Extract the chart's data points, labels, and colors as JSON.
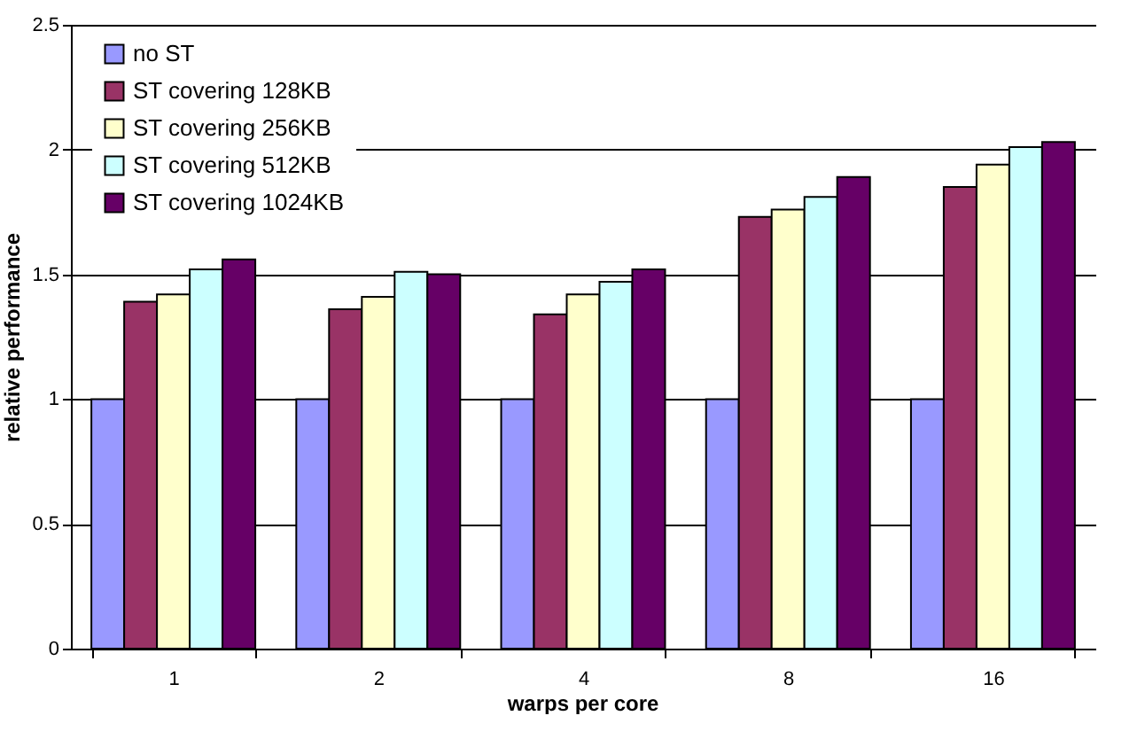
{
  "chart_data": {
    "type": "bar",
    "xlabel": "warps per core",
    "ylabel": "relative performance",
    "categories": [
      "1",
      "2",
      "4",
      "8",
      "16"
    ],
    "series": [
      {
        "name": "no ST",
        "color": "#9999ff",
        "values": [
          1,
          1,
          1,
          1,
          1
        ]
      },
      {
        "name": "ST covering 128KB",
        "color": "#993366",
        "values": [
          1.39,
          1.36,
          1.34,
          1.73,
          1.85
        ]
      },
      {
        "name": "ST covering 256KB",
        "color": "#ffffcc",
        "values": [
          1.42,
          1.41,
          1.42,
          1.76,
          1.94
        ]
      },
      {
        "name": "ST covering 512KB",
        "color": "#ccffff",
        "values": [
          1.52,
          1.51,
          1.47,
          1.81,
          2.01
        ]
      },
      {
        "name": "ST covering 1024KB",
        "color": "#660066",
        "values": [
          1.56,
          1.5,
          1.52,
          1.89,
          2.03
        ]
      }
    ],
    "ylim": [
      0,
      2.5
    ],
    "yticks": [
      0,
      0.5,
      1,
      1.5,
      2,
      2.5
    ],
    "grid": "y",
    "legend": "top left"
  }
}
